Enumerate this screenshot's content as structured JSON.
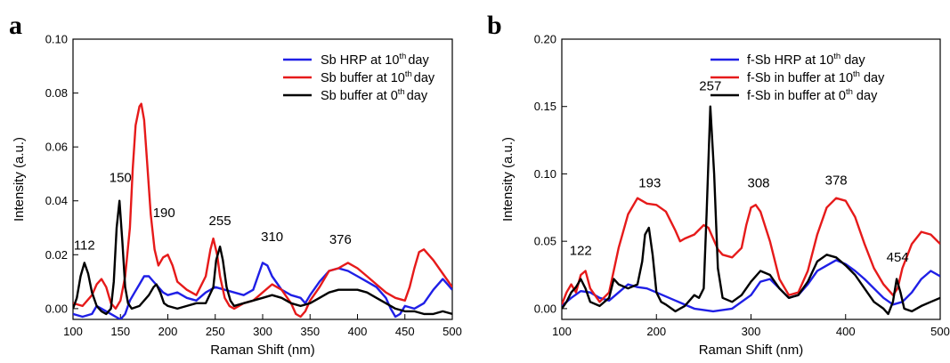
{
  "chart_data": [
    {
      "type": "line",
      "panel": "a",
      "xlabel": "Raman Shift (nm)",
      "ylabel": "Intensity (a.u.)",
      "xlim": [
        100,
        500
      ],
      "ylim": [
        -0.004,
        0.1
      ],
      "xticks": [
        100,
        150,
        200,
        250,
        300,
        350,
        400,
        450,
        500
      ],
      "xtick_labels": [
        "100",
        "150",
        "200",
        "250",
        "300",
        "350",
        "400",
        "450",
        "500"
      ],
      "yticks": [
        0,
        0.02,
        0.04,
        0.06,
        0.08,
        0.1
      ],
      "ytick_labels": [
        "0.00",
        "0.02",
        "0.04",
        "0.06",
        "0.08",
        "0.10"
      ],
      "grid": false,
      "legend_position": "top-right",
      "series": [
        {
          "name": "Sb HRP  at 10th day",
          "legend": {
            "pre": "Sb HRP  at 10",
            "sup": "th",
            "post": "day"
          },
          "color": "#1f1fe6",
          "x": [
            100,
            110,
            120,
            125,
            130,
            140,
            145,
            150,
            155,
            160,
            165,
            170,
            175,
            180,
            185,
            190,
            195,
            200,
            210,
            220,
            230,
            240,
            250,
            260,
            270,
            280,
            290,
            295,
            300,
            305,
            310,
            320,
            330,
            340,
            345,
            350,
            360,
            370,
            380,
            390,
            400,
            410,
            420,
            430,
            435,
            440,
            445,
            450,
            460,
            470,
            480,
            490,
            495,
            500
          ],
          "y": [
            -0.002,
            -0.003,
            -0.002,
            0.001,
            0.0,
            -0.002,
            -0.003,
            -0.004,
            -0.002,
            0.003,
            0.006,
            0.009,
            0.012,
            0.012,
            0.01,
            0.008,
            0.006,
            0.005,
            0.006,
            0.004,
            0.003,
            0.006,
            0.008,
            0.007,
            0.006,
            0.005,
            0.007,
            0.012,
            0.017,
            0.016,
            0.012,
            0.007,
            0.005,
            0.004,
            0.002,
            0.005,
            0.01,
            0.014,
            0.015,
            0.014,
            0.012,
            0.01,
            0.008,
            0.004,
            0.0,
            -0.003,
            -0.002,
            0.001,
            0.0,
            0.002,
            0.007,
            0.011,
            0.009,
            0.007
          ]
        },
        {
          "name": "Sb buffer at 10th day",
          "legend": {
            "pre": "Sb buffer at 10",
            "sup": "th",
            "post": "day"
          },
          "color": "#e61a1a",
          "x": [
            100,
            110,
            120,
            125,
            130,
            135,
            140,
            145,
            150,
            155,
            160,
            163,
            166,
            170,
            172,
            175,
            178,
            182,
            186,
            190,
            195,
            200,
            205,
            210,
            220,
            230,
            240,
            245,
            248,
            252,
            255,
            260,
            265,
            270,
            280,
            290,
            300,
            310,
            320,
            330,
            335,
            340,
            345,
            350,
            360,
            370,
            380,
            385,
            390,
            400,
            410,
            420,
            430,
            440,
            450,
            455,
            460,
            465,
            470,
            480,
            490,
            500
          ],
          "y": [
            0.002,
            0.001,
            0.005,
            0.009,
            0.011,
            0.008,
            0.002,
            0.0,
            0.003,
            0.012,
            0.03,
            0.052,
            0.068,
            0.075,
            0.076,
            0.07,
            0.055,
            0.035,
            0.022,
            0.016,
            0.019,
            0.02,
            0.016,
            0.01,
            0.007,
            0.005,
            0.012,
            0.022,
            0.026,
            0.02,
            0.012,
            0.004,
            0.001,
            0.0,
            0.002,
            0.003,
            0.006,
            0.009,
            0.007,
            0.002,
            -0.002,
            -0.003,
            -0.001,
            0.003,
            0.008,
            0.014,
            0.015,
            0.016,
            0.017,
            0.015,
            0.012,
            0.009,
            0.006,
            0.004,
            0.003,
            0.008,
            0.015,
            0.021,
            0.022,
            0.018,
            0.013,
            0.008
          ]
        },
        {
          "name": "Sb buffer at 0th day",
          "legend": {
            "pre": "Sb buffer at 0",
            "sup": "th",
            "post": "day"
          },
          "color": "#000000",
          "x": [
            100,
            104,
            108,
            112,
            116,
            120,
            125,
            130,
            135,
            140,
            143,
            146,
            149,
            152,
            155,
            158,
            162,
            170,
            180,
            185,
            188,
            192,
            196,
            200,
            210,
            220,
            230,
            240,
            248,
            251,
            255,
            258,
            262,
            266,
            270,
            280,
            290,
            300,
            310,
            320,
            330,
            340,
            350,
            360,
            370,
            380,
            390,
            400,
            410,
            420,
            430,
            440,
            450,
            460,
            470,
            480,
            490,
            500
          ],
          "y": [
            0.0,
            0.004,
            0.012,
            0.017,
            0.013,
            0.006,
            0.001,
            -0.001,
            -0.002,
            0.0,
            0.01,
            0.03,
            0.04,
            0.025,
            0.008,
            0.002,
            0.0,
            0.001,
            0.005,
            0.008,
            0.009,
            0.006,
            0.002,
            0.001,
            0.0,
            0.001,
            0.002,
            0.002,
            0.008,
            0.018,
            0.023,
            0.018,
            0.008,
            0.003,
            0.001,
            0.002,
            0.003,
            0.004,
            0.005,
            0.004,
            0.002,
            0.001,
            0.002,
            0.004,
            0.006,
            0.007,
            0.007,
            0.007,
            0.006,
            0.004,
            0.002,
            0.0,
            -0.001,
            -0.001,
            -0.002,
            -0.002,
            -0.001,
            -0.002
          ]
        }
      ],
      "peak_labels": [
        {
          "text": "112",
          "x": 112,
          "y": 0.022
        },
        {
          "text": "150",
          "x": 150,
          "y": 0.047
        },
        {
          "text": "190",
          "x": 196,
          "y": 0.034
        },
        {
          "text": "255",
          "x": 255,
          "y": 0.031
        },
        {
          "text": "310",
          "x": 310,
          "y": 0.025
        },
        {
          "text": "376",
          "x": 382,
          "y": 0.024
        }
      ]
    },
    {
      "type": "line",
      "panel": "b",
      "xlabel": "Raman Shift (nm)",
      "ylabel": "Intensity (a.u.)",
      "xlim": [
        100,
        500
      ],
      "ylim": [
        -0.008,
        0.2
      ],
      "xticks": [
        100,
        200,
        300,
        400,
        500
      ],
      "xtick_labels": [
        "100",
        "200",
        "300",
        "400",
        "500"
      ],
      "yticks": [
        0,
        0.05,
        0.1,
        0.15,
        0.2
      ],
      "ytick_labels": [
        "0.00",
        "0.05",
        "0.10",
        "0.15",
        "0.20"
      ],
      "grid": false,
      "legend_position": "top-right",
      "series": [
        {
          "name": "f-Sb HRP at 10th day",
          "legend": {
            "pre": "f-Sb HRP at 10",
            "sup": "th",
            "post": " day"
          },
          "color": "#1f1fe6",
          "x": [
            100,
            110,
            120,
            130,
            140,
            150,
            160,
            170,
            180,
            190,
            200,
            220,
            240,
            260,
            280,
            300,
            310,
            320,
            330,
            340,
            350,
            360,
            370,
            380,
            390,
            400,
            410,
            420,
            430,
            440,
            450,
            460,
            470,
            480,
            490,
            500
          ],
          "y": [
            0.002,
            0.008,
            0.013,
            0.012,
            0.008,
            0.006,
            0.012,
            0.018,
            0.016,
            0.015,
            0.012,
            0.006,
            0.0,
            -0.002,
            0.0,
            0.01,
            0.02,
            0.022,
            0.015,
            0.008,
            0.01,
            0.018,
            0.028,
            0.032,
            0.036,
            0.033,
            0.028,
            0.022,
            0.015,
            0.008,
            0.003,
            0.005,
            0.012,
            0.022,
            0.028,
            0.024
          ]
        },
        {
          "name": "f-Sb in buffer at 10th day",
          "legend": {
            "pre": "f-Sb in buffer at 10",
            "sup": "th",
            "post": " day"
          },
          "color": "#e61a1a",
          "x": [
            100,
            105,
            110,
            115,
            120,
            125,
            130,
            140,
            150,
            160,
            170,
            180,
            190,
            200,
            210,
            220,
            225,
            230,
            240,
            250,
            255,
            260,
            265,
            270,
            280,
            290,
            295,
            300,
            305,
            310,
            320,
            330,
            340,
            350,
            360,
            370,
            380,
            390,
            400,
            410,
            420,
            430,
            440,
            450,
            455,
            460,
            470,
            480,
            490,
            500
          ],
          "y": [
            0.003,
            0.012,
            0.018,
            0.012,
            0.025,
            0.028,
            0.015,
            0.005,
            0.012,
            0.045,
            0.07,
            0.082,
            0.078,
            0.077,
            0.072,
            0.058,
            0.05,
            0.052,
            0.055,
            0.062,
            0.06,
            0.052,
            0.044,
            0.04,
            0.038,
            0.045,
            0.062,
            0.075,
            0.077,
            0.072,
            0.05,
            0.022,
            0.01,
            0.012,
            0.028,
            0.055,
            0.075,
            0.082,
            0.08,
            0.068,
            0.048,
            0.03,
            0.018,
            0.01,
            0.015,
            0.03,
            0.048,
            0.057,
            0.055,
            0.048
          ]
        },
        {
          "name": "f-Sb in buffer at 0th day",
          "legend": {
            "pre": "f-Sb in buffer at 0",
            "sup": "th",
            "post": " day"
          },
          "color": "#000000",
          "x": [
            100,
            105,
            110,
            115,
            120,
            125,
            130,
            140,
            150,
            155,
            160,
            170,
            180,
            185,
            188,
            192,
            196,
            200,
            205,
            210,
            220,
            230,
            240,
            245,
            250,
            253,
            257,
            261,
            265,
            270,
            280,
            290,
            300,
            310,
            320,
            330,
            340,
            350,
            360,
            370,
            380,
            390,
            400,
            410,
            420,
            430,
            440,
            445,
            450,
            454,
            458,
            462,
            470,
            480,
            490,
            500
          ],
          "y": [
            0.0,
            0.005,
            0.012,
            0.016,
            0.022,
            0.015,
            0.005,
            0.002,
            0.008,
            0.022,
            0.018,
            0.015,
            0.018,
            0.035,
            0.055,
            0.06,
            0.04,
            0.012,
            0.005,
            0.003,
            -0.002,
            0.002,
            0.01,
            0.008,
            0.015,
            0.07,
            0.15,
            0.1,
            0.03,
            0.008,
            0.005,
            0.01,
            0.02,
            0.028,
            0.025,
            0.015,
            0.008,
            0.01,
            0.02,
            0.035,
            0.04,
            0.038,
            0.032,
            0.025,
            0.015,
            0.005,
            0.0,
            -0.004,
            0.005,
            0.022,
            0.012,
            0.0,
            -0.002,
            0.002,
            0.005,
            0.008
          ]
        }
      ],
      "peak_labels": [
        {
          "text": "122",
          "x": 120,
          "y": 0.04
        },
        {
          "text": "193",
          "x": 193,
          "y": 0.09
        },
        {
          "text": "257",
          "x": 257,
          "y": 0.162
        },
        {
          "text": "308",
          "x": 308,
          "y": 0.09
        },
        {
          "text": "378",
          "x": 390,
          "y": 0.092
        },
        {
          "text": "454",
          "x": 455,
          "y": 0.035
        }
      ]
    }
  ]
}
